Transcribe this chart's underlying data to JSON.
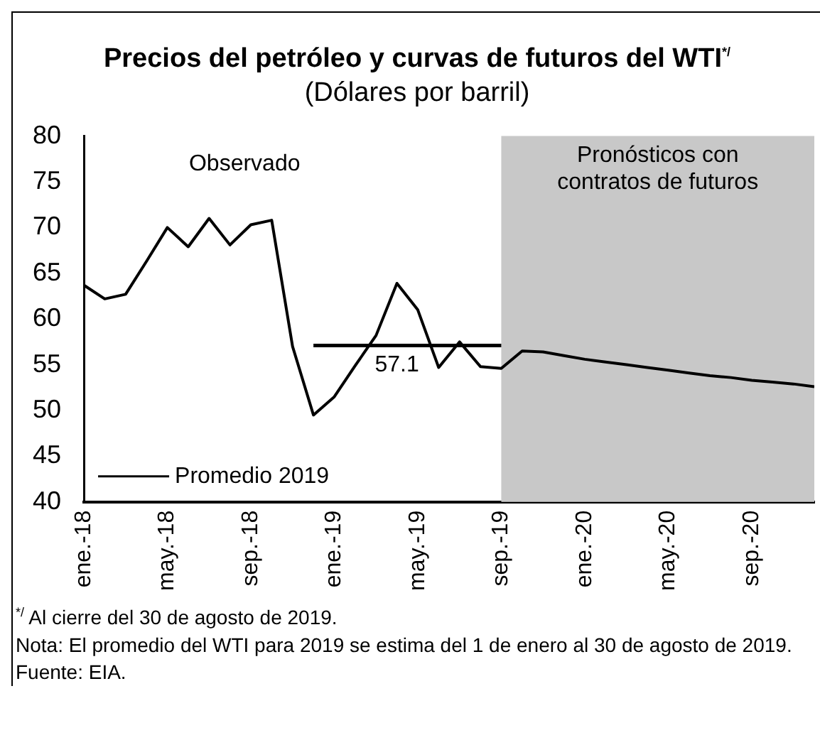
{
  "chart_data": {
    "type": "line",
    "title": "Precios del petróleo y curvas de futuros del WTI$^{*/}$",
    "subtitle": "(Dólares por barril)",
    "x": [
      "2018-01",
      "2018-02",
      "2018-03",
      "2018-04",
      "2018-05",
      "2018-06",
      "2018-07",
      "2018-08",
      "2018-09",
      "2018-10",
      "2018-11",
      "2018-12",
      "2019-01",
      "2019-02",
      "2019-03",
      "2019-04",
      "2019-05",
      "2019-06",
      "2019-07",
      "2019-08",
      "2019-09",
      "2019-10",
      "2019-11",
      "2019-12",
      "2020-01",
      "2020-02",
      "2020-03",
      "2020-04",
      "2020-05",
      "2020-06",
      "2020-07",
      "2020-08",
      "2020-09",
      "2020-10",
      "2020-11",
      "2020-12"
    ],
    "series": [
      {
        "color": "#000000",
        "values": [
          63.7,
          62.2,
          62.7,
          66.3,
          70.0,
          67.9,
          71.0,
          68.1,
          70.3,
          70.8,
          57.0,
          49.5,
          51.5,
          54.9,
          58.2,
          63.9,
          61.0,
          54.7,
          57.5,
          54.8,
          54.6,
          56.5,
          56.4,
          56.0,
          55.6,
          55.3,
          55.0,
          54.7,
          54.4,
          54.1,
          53.8,
          53.6,
          53.3,
          53.1,
          52.9,
          52.6
        ]
      },
      {
        "name": "Promedio 2019",
        "color": "#000000",
        "x": [
          "2018-12",
          "2019-09"
        ],
        "values": [
          57.1,
          57.1
        ]
      }
    ],
    "xlim": [
      "2018-01",
      "2020-12"
    ],
    "xticks": [
      {
        "value": "2018-01",
        "label": "ene.-18"
      },
      {
        "value": "2018-05",
        "label": "may.-18"
      },
      {
        "value": "2018-09",
        "label": "sep.-18"
      },
      {
        "value": "2019-01",
        "label": "ene.-19"
      },
      {
        "value": "2019-05",
        "label": "may.-19"
      },
      {
        "value": "2019-09",
        "label": "sep.-19"
      },
      {
        "value": "2020-01",
        "label": "ene.-20"
      },
      {
        "value": "2020-05",
        "label": "may.-20"
      },
      {
        "value": "2020-09",
        "label": "sep.-20"
      }
    ],
    "ylim": [
      40,
      80
    ],
    "yticks": [
      40,
      45,
      50,
      55,
      60,
      65,
      70,
      75,
      80
    ],
    "bands": [
      {
        "axis": "x",
        "from": "2019-09",
        "to": "2020-12",
        "label": "Pronósticos con contratos de futuros",
        "color": "#c8c8c8"
      }
    ],
    "annotations": [
      "Observado",
      {
        "text": "57.1",
        "x": "2019-04",
        "y": 57.1
      },
      "$^{*/}$ Al cierre del 30 de agosto de 2019.",
      "Nota: El promedio del WTI para 2019 se estima del 1 de enero al 30 de agosto de 2019.",
      "Fuente: EIA."
    ],
    "legend": "bottom left",
    "grid": false,
    "marker": "none",
    "line_style": "solid"
  }
}
